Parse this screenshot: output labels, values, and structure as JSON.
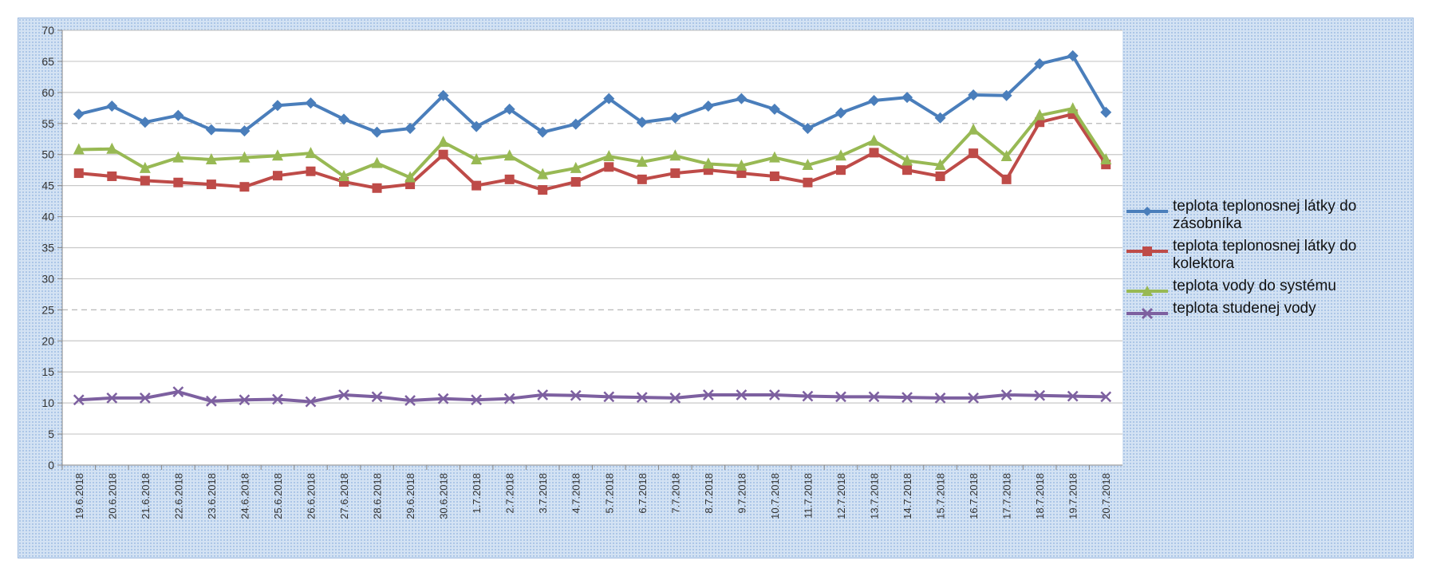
{
  "chart_data": {
    "type": "line",
    "title": "",
    "xlabel": "",
    "ylabel": "",
    "ylim": [
      0,
      70
    ],
    "yticks": [
      "0",
      "5",
      "10",
      "15",
      "20",
      "25",
      "30",
      "35",
      "40",
      "45",
      "50",
      "55",
      "60",
      "65",
      "70"
    ],
    "categories": [
      "19.6.2018",
      "20.6.2018",
      "21.6.2018",
      "22.6.2018",
      "23.6.2018",
      "24.6.2018",
      "25.6.2018",
      "26.6.2018",
      "27.6.2018",
      "28.6.2018",
      "29.6.2018",
      "30.6.2018",
      "1.7.2018",
      "2.7.2018",
      "3.7.2018",
      "4.7.2018",
      "5.7.2018",
      "6.7.2018",
      "7.7.2018",
      "8.7.2018",
      "9.7.2018",
      "10.7.2018",
      "11.7.2018",
      "12.7.2018",
      "13.7.2018",
      "14.7.2018",
      "15.7.2018",
      "16.7.2018",
      "17.7.2018",
      "18.7.2018",
      "19.7.2018",
      "20.7.2018"
    ],
    "legend_position": "right",
    "series": [
      {
        "name": "teplota teplonosnej látky do zásobníka",
        "color": "#4a7ebb",
        "marker": "diamond",
        "values": [
          56.5,
          57.8,
          55.2,
          56.3,
          54,
          53.8,
          57.9,
          58.3,
          55.7,
          53.6,
          54.2,
          59.5,
          54.5,
          57.3,
          53.6,
          54.9,
          59,
          55.2,
          55.9,
          57.8,
          59,
          57.3,
          54.2,
          56.7,
          58.7,
          59.2,
          55.9,
          59.6,
          59.5,
          64.6,
          65.9,
          56.8
        ]
      },
      {
        "name": "teplota teplonosnej látky do kolektora",
        "color": "#be4b48",
        "marker": "square",
        "values": [
          47,
          46.5,
          45.8,
          45.5,
          45.2,
          44.8,
          46.6,
          47.3,
          45.6,
          44.6,
          45.2,
          50,
          45,
          46,
          44.3,
          45.6,
          48,
          46,
          47,
          47.5,
          47,
          46.5,
          45.5,
          47.5,
          50.3,
          47.5,
          46.5,
          50.2,
          46,
          55.2,
          56.5,
          48.4
        ]
      },
      {
        "name": "teplota vody do systému",
        "color": "#98b954",
        "marker": "triangle",
        "values": [
          50.8,
          50.9,
          47.8,
          49.5,
          49.2,
          49.5,
          49.8,
          50.2,
          46.5,
          48.6,
          46.3,
          52,
          49.2,
          49.8,
          46.8,
          47.8,
          49.7,
          48.8,
          49.8,
          48.5,
          48.2,
          49.5,
          48.3,
          49.8,
          52.2,
          49,
          48.3,
          54,
          49.7,
          56.3,
          57.4,
          49.2
        ]
      },
      {
        "name": "teplota studenej vody",
        "color": "#7d60a0",
        "marker": "x",
        "values": [
          10.5,
          10.8,
          10.8,
          11.8,
          10.3,
          10.5,
          10.6,
          10.2,
          11.3,
          11,
          10.4,
          10.7,
          10.5,
          10.7,
          11.3,
          11.2,
          11,
          10.9,
          10.8,
          11.3,
          11.3,
          11.3,
          11.1,
          11,
          11,
          10.9,
          10.8,
          10.8,
          11.3,
          11.2,
          11.1,
          11
        ]
      }
    ]
  }
}
